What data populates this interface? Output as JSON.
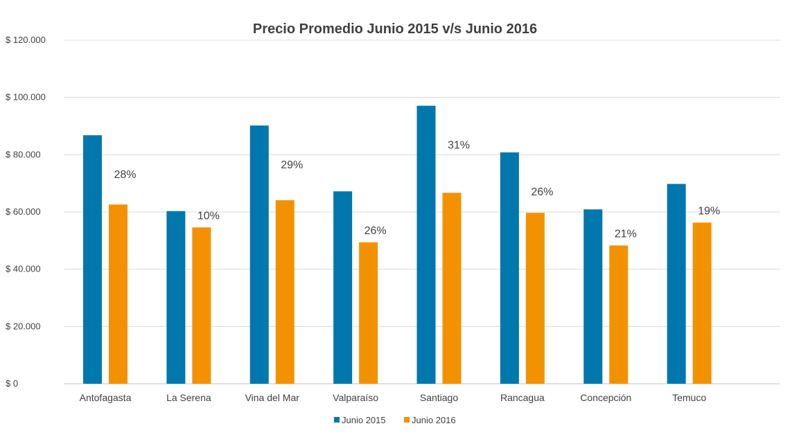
{
  "chart_data": {
    "type": "bar",
    "title": "Precio Promedio Junio 2015 v/s Junio 2016",
    "xlabel": "",
    "ylabel": "",
    "ylim": [
      0,
      120000
    ],
    "yticks": [
      0,
      20000,
      40000,
      60000,
      80000,
      100000,
      120000
    ],
    "ytick_labels": [
      "$ 0",
      "$ 20.000",
      "$ 40.000",
      "$ 60.000",
      "$ 80.000",
      "$ 100.000",
      "$ 120.000"
    ],
    "grid": true,
    "legend_position": "bottom",
    "categories": [
      "Antofagasta",
      "La Serena",
      "Vina del Mar",
      "Valparaíso",
      "Santiago",
      "Rancagua",
      "Concepción",
      "Temuco"
    ],
    "series": [
      {
        "name": "Junio 2015",
        "color": "#0077ad",
        "values": [
          86800,
          60300,
          90200,
          67200,
          97100,
          80800,
          60900,
          69800
        ]
      },
      {
        "name": "Junio 2016",
        "color": "#f39200",
        "values": [
          62600,
          54600,
          64100,
          49400,
          66700,
          59700,
          48300,
          56300
        ]
      }
    ],
    "annotations": [
      "28%",
      "10%",
      "29%",
      "26%",
      "31%",
      "26%",
      "21%",
      "19%"
    ]
  }
}
